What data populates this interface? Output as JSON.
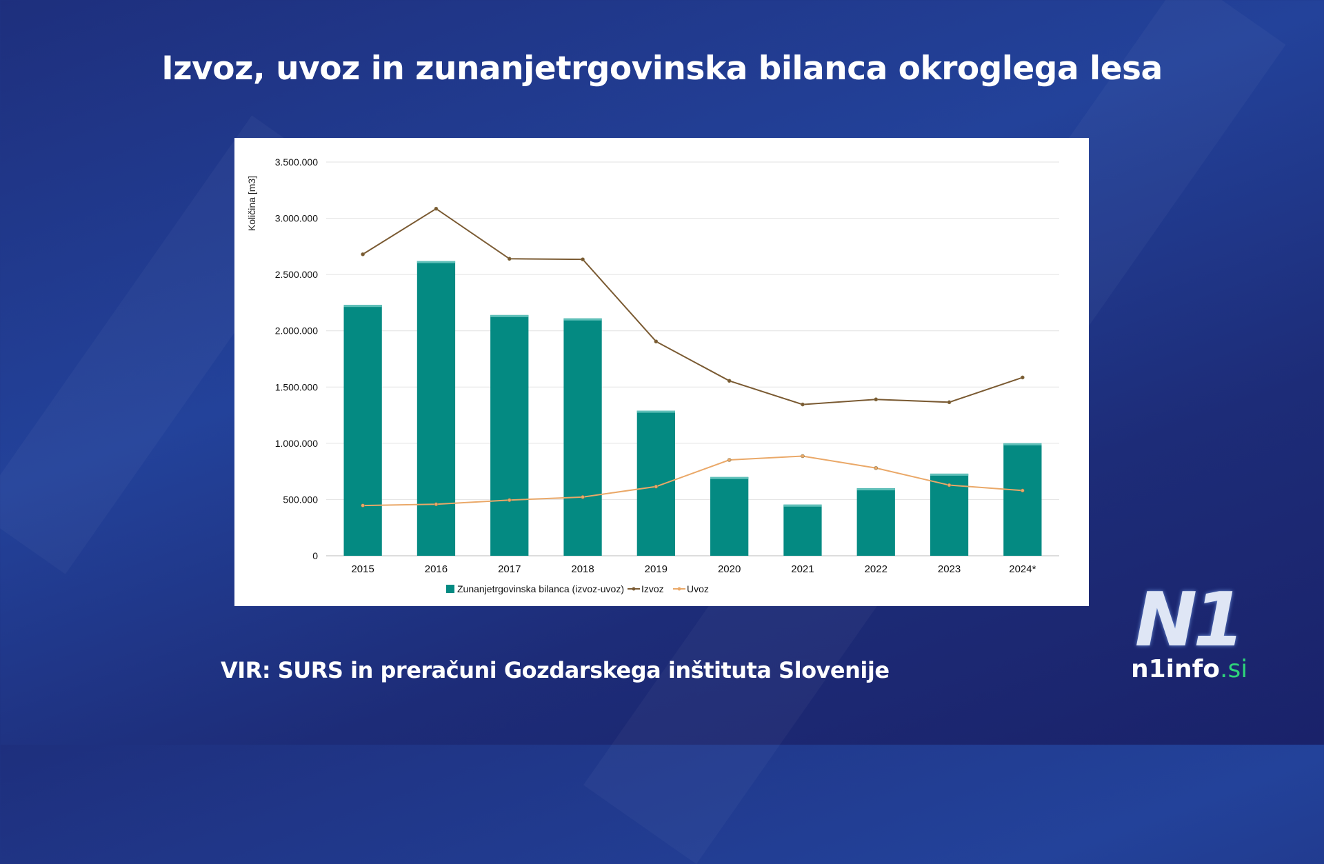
{
  "title": "Izvoz, uvoz in zunanjetrgovinska bilanca okroglega lesa",
  "source": "VIR: SURS in preračuni Gozdarskega inštituta Slovenije",
  "logo": {
    "mark": "N1",
    "name": "n1info",
    "tld": ".si"
  },
  "colors": {
    "bar": "#048a82",
    "izvoz": "#7a5a32",
    "uvoz": "#eaa868",
    "background": "#1e2f7d"
  },
  "chart_data": {
    "type": "bar",
    "title": "",
    "xlabel": "",
    "ylabel": "Količina [m3]",
    "ylim": [
      0,
      3500000
    ],
    "yticks": [
      0,
      500000,
      1000000,
      1500000,
      2000000,
      2500000,
      3000000,
      3500000
    ],
    "ytick_labels": [
      "0",
      "500.000",
      "1.000.000",
      "1.500.000",
      "2.000.000",
      "2.500.000",
      "3.000.000",
      "3.500.000"
    ],
    "grid": true,
    "legend_position": "bottom",
    "categories": [
      "2015",
      "2016",
      "2017",
      "2018",
      "2019",
      "2020",
      "2021",
      "2022",
      "2023",
      "2024*"
    ],
    "series": [
      {
        "name": "Zunanjetrgovinska bilanca (izvoz-uvoz)",
        "type": "bar",
        "values": [
          2230000,
          2620000,
          2140000,
          2110000,
          1290000,
          700000,
          455000,
          600000,
          730000,
          1000000
        ]
      },
      {
        "name": "Izvoz",
        "type": "line",
        "values": [
          2680000,
          3085000,
          2640000,
          2635000,
          1905000,
          1555000,
          1345000,
          1390000,
          1365000,
          1585000
        ]
      },
      {
        "name": "Uvoz",
        "type": "line",
        "values": [
          447000,
          458000,
          495000,
          522000,
          615000,
          852000,
          886000,
          780000,
          628000,
          580000
        ]
      }
    ]
  }
}
